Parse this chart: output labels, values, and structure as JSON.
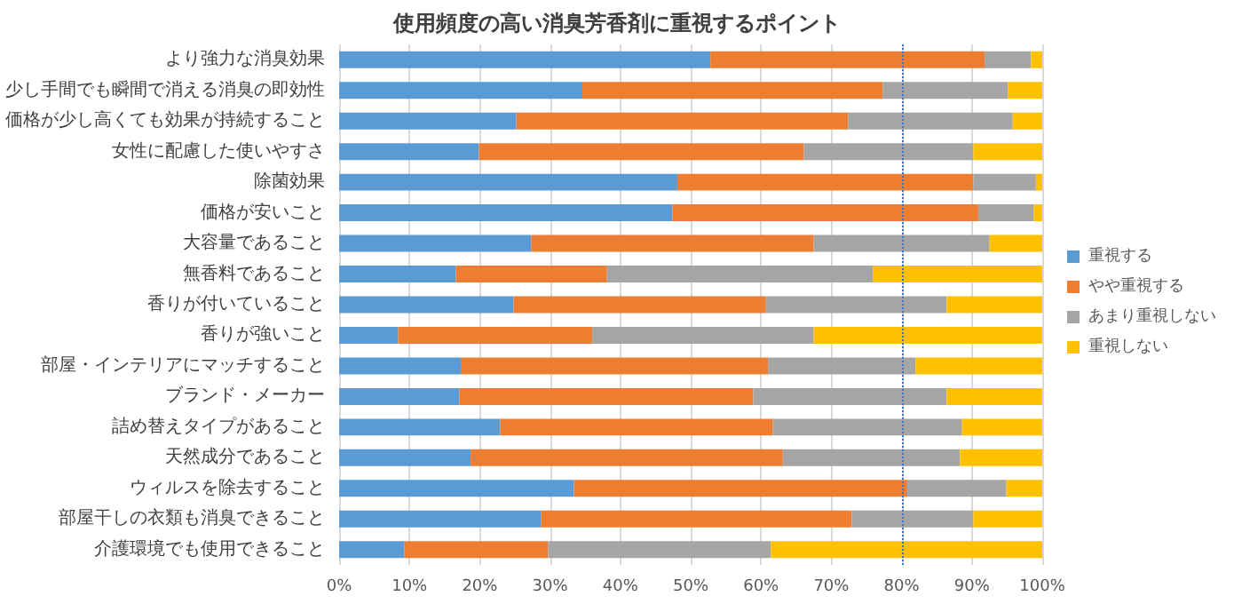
{
  "chart_data": {
    "type": "bar",
    "orientation": "horizontal",
    "stacked": true,
    "title": "使用頻度の高い消臭芳香剤に重視するポイント",
    "categories": [
      "より強力な消臭効果",
      "少し手間でも瞬間で消える消臭の即効性",
      "価格が少し高くても効果が持続すること",
      "女性に配慮した使いやすさ",
      "除菌効果",
      "価格が安いこと",
      "大容量であること",
      "無香料であること",
      "香りが付いていること",
      "香りが強いこと",
      "部屋・インテリアにマッチすること",
      "ブランド・メーカー",
      "詰め替えタイプがあること",
      "天然成分であること",
      "ウィルスを除去すること",
      "部屋干しの衣類も消臭できること",
      "介護環境でも使用できること"
    ],
    "series": [
      {
        "name": "重視する",
        "color": "#5b9bd5",
        "values": [
          52.8,
          34.6,
          25.2,
          19.9,
          48.1,
          47.4,
          27.3,
          16.6,
          24.8,
          8.4,
          17.3,
          17.1,
          22.9,
          18.7,
          33.4,
          28.7,
          9.3
        ]
      },
      {
        "name": "やや重視する",
        "color": "#ed7d31",
        "values": [
          39.0,
          42.7,
          47.2,
          46.2,
          42.1,
          43.5,
          40.2,
          21.5,
          35.9,
          27.6,
          43.7,
          41.8,
          38.8,
          44.4,
          47.4,
          44.2,
          20.4
        ]
      },
      {
        "name": "あまり重視しない",
        "color": "#a5a5a5",
        "values": [
          6.6,
          17.8,
          23.4,
          24.1,
          8.9,
          7.9,
          25.0,
          37.8,
          25.7,
          31.5,
          21.0,
          27.5,
          26.9,
          25.2,
          14.1,
          17.3,
          31.7
        ]
      },
      {
        "name": "重視しない",
        "color": "#ffc000",
        "values": [
          1.6,
          4.9,
          4.2,
          9.8,
          0.9,
          1.2,
          7.5,
          24.1,
          13.6,
          32.5,
          18.0,
          13.6,
          11.4,
          11.7,
          5.1,
          9.8,
          38.6
        ]
      }
    ],
    "xlim": [
      0,
      100
    ],
    "xticks": [
      {
        "value": 0,
        "label": "0%"
      },
      {
        "value": 10,
        "label": "10%"
      },
      {
        "value": 20,
        "label": "20%"
      },
      {
        "value": 30,
        "label": "30%"
      },
      {
        "value": 40,
        "label": "40%"
      },
      {
        "value": 50,
        "label": "50%"
      },
      {
        "value": 60,
        "label": "60%"
      },
      {
        "value": 70,
        "label": "70%"
      },
      {
        "value": 80,
        "label": "80%"
      },
      {
        "value": 90,
        "label": "90%"
      },
      {
        "value": 100,
        "label": "100%"
      }
    ],
    "ref_lines": [
      {
        "axis": "x",
        "value": 80,
        "color": "#2e75d6",
        "line_style": "dotted"
      }
    ],
    "grid": "x",
    "legend": "right"
  }
}
